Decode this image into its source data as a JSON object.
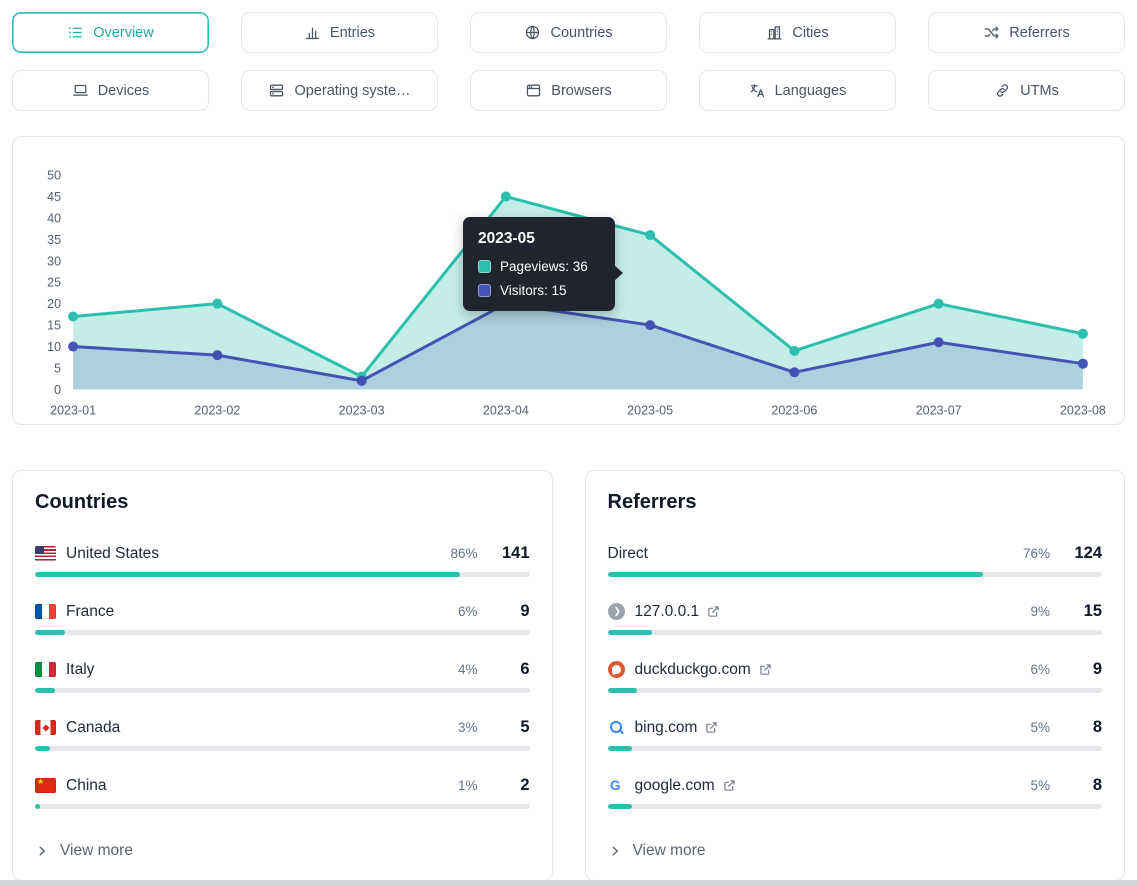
{
  "colors": {
    "accent_teal": "#2cbfad",
    "indigo": "#4353b4",
    "tooltip_bg": "#20242e",
    "border": "#e5e7eb"
  },
  "tabs": [
    {
      "label": "Overview",
      "active": true
    },
    {
      "label": "Entries"
    },
    {
      "label": "Countries"
    },
    {
      "label": "Cities"
    },
    {
      "label": "Referrers"
    },
    {
      "label": "Devices"
    },
    {
      "label": "Operating syste…"
    },
    {
      "label": "Browsers"
    },
    {
      "label": "Languages"
    },
    {
      "label": "UTMs"
    }
  ],
  "chart_data": {
    "type": "area",
    "x": [
      "2023-01",
      "2023-02",
      "2023-03",
      "2023-04",
      "2023-05",
      "2023-06",
      "2023-07",
      "2023-08"
    ],
    "series": [
      {
        "name": "Pageviews",
        "color": "#2cbfad",
        "fill": "rgba(44,191,173,0.28)",
        "values": [
          17,
          20,
          3,
          45,
          36,
          9,
          20,
          13
        ]
      },
      {
        "name": "Visitors",
        "color": "#4353b4",
        "fill": "rgba(67,83,180,0.18)",
        "values": [
          10,
          8,
          2,
          20,
          15,
          4,
          11,
          6
        ]
      }
    ],
    "ylim": [
      0,
      50
    ],
    "yticks": [
      0,
      5,
      10,
      15,
      20,
      25,
      30,
      35,
      40,
      45,
      50
    ],
    "grid": false,
    "legend_position": "tooltip-only",
    "tooltip": {
      "title": "2023-05",
      "rows": [
        {
          "series": "Pageviews",
          "value": 36,
          "text": "Pageviews: 36",
          "color": "#2cbfad"
        },
        {
          "series": "Visitors",
          "value": 15,
          "text": "Visitors: 15",
          "color": "#4353b4"
        }
      ]
    }
  },
  "countries": {
    "title": "Countries",
    "view_more": "View more",
    "rows": [
      {
        "label": "United States",
        "flag": "us",
        "percent": "86%",
        "count": "141",
        "bar": 86
      },
      {
        "label": "France",
        "flag": "fr",
        "percent": "6%",
        "count": "9",
        "bar": 6
      },
      {
        "label": "Italy",
        "flag": "it",
        "percent": "4%",
        "count": "6",
        "bar": 4
      },
      {
        "label": "Canada",
        "flag": "ca",
        "percent": "3%",
        "count": "5",
        "bar": 3
      },
      {
        "label": "China",
        "flag": "cn",
        "percent": "1%",
        "count": "2",
        "bar": 1
      }
    ]
  },
  "referrers": {
    "title": "Referrers",
    "view_more": "View more",
    "rows": [
      {
        "label": "Direct",
        "favicon": "none",
        "percent": "76%",
        "count": "124",
        "bar": 76
      },
      {
        "label": "127.0.0.1",
        "favicon": "localhost",
        "percent": "9%",
        "count": "15",
        "bar": 9
      },
      {
        "label": "duckduckgo.com",
        "favicon": "duckduckgo",
        "percent": "6%",
        "count": "9",
        "bar": 6
      },
      {
        "label": "bing.com",
        "favicon": "bing",
        "percent": "5%",
        "count": "8",
        "bar": 5
      },
      {
        "label": "google.com",
        "favicon": "google",
        "percent": "5%",
        "count": "8",
        "bar": 5
      }
    ]
  }
}
